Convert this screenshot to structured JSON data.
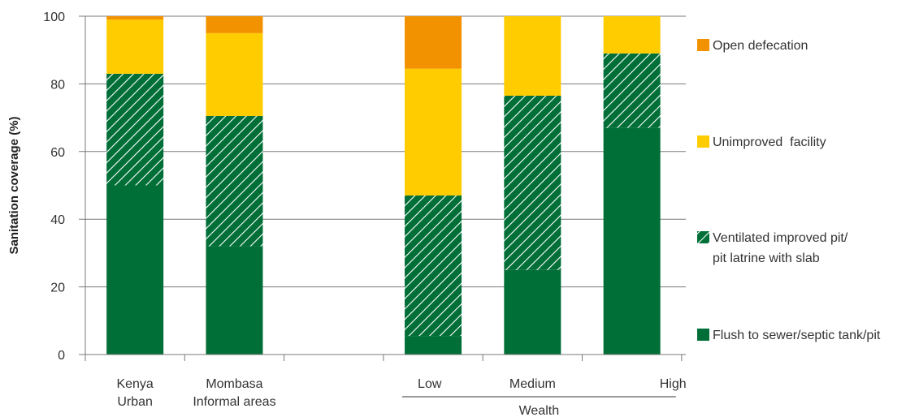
{
  "chart_data": {
    "type": "bar",
    "stacked": true,
    "ylabel": "Sanitation coverage (%)",
    "ylim": [
      0,
      100
    ],
    "yticks": [
      0,
      20,
      40,
      60,
      80,
      100
    ],
    "grid": true,
    "legend_position": "right",
    "categories": [
      {
        "label_lines": [
          "Kenya",
          "Urban"
        ],
        "align": "center"
      },
      {
        "label_lines": [
          "Mombasa",
          "Informal areas"
        ],
        "align": "center"
      },
      {
        "label_lines": [],
        "align": "center"
      },
      {
        "label_lines": [
          "Low"
        ],
        "align": "left"
      },
      {
        "label_lines": [
          "Medium"
        ],
        "align": "center"
      },
      {
        "label_lines": [
          "High"
        ],
        "align": "right"
      }
    ],
    "group_label": {
      "text": "Wealth",
      "categories": [
        3,
        4,
        5
      ]
    },
    "series": [
      {
        "name": "Flush to sewer/septic tank/pit",
        "color": "#006f37",
        "pattern": "solid",
        "values": [
          50,
          32,
          null,
          5.5,
          25,
          67
        ]
      },
      {
        "name": "Ventilated improved pit/ pit latrine with slab",
        "legend_lines": [
          "Ventilated improved pit/",
          "pit latrine with slab"
        ],
        "color": "#006f37",
        "pattern": "hatched",
        "values": [
          33,
          38.5,
          null,
          41.5,
          51.5,
          22
        ]
      },
      {
        "name": "Unimproved  facility",
        "color": "#ffcc00",
        "pattern": "solid",
        "values": [
          16,
          24.5,
          null,
          37.5,
          23.5,
          11
        ]
      },
      {
        "name": "Open defecation",
        "color": "#f39200",
        "pattern": "solid",
        "values": [
          1,
          5,
          null,
          15.5,
          0,
          0
        ]
      }
    ]
  }
}
